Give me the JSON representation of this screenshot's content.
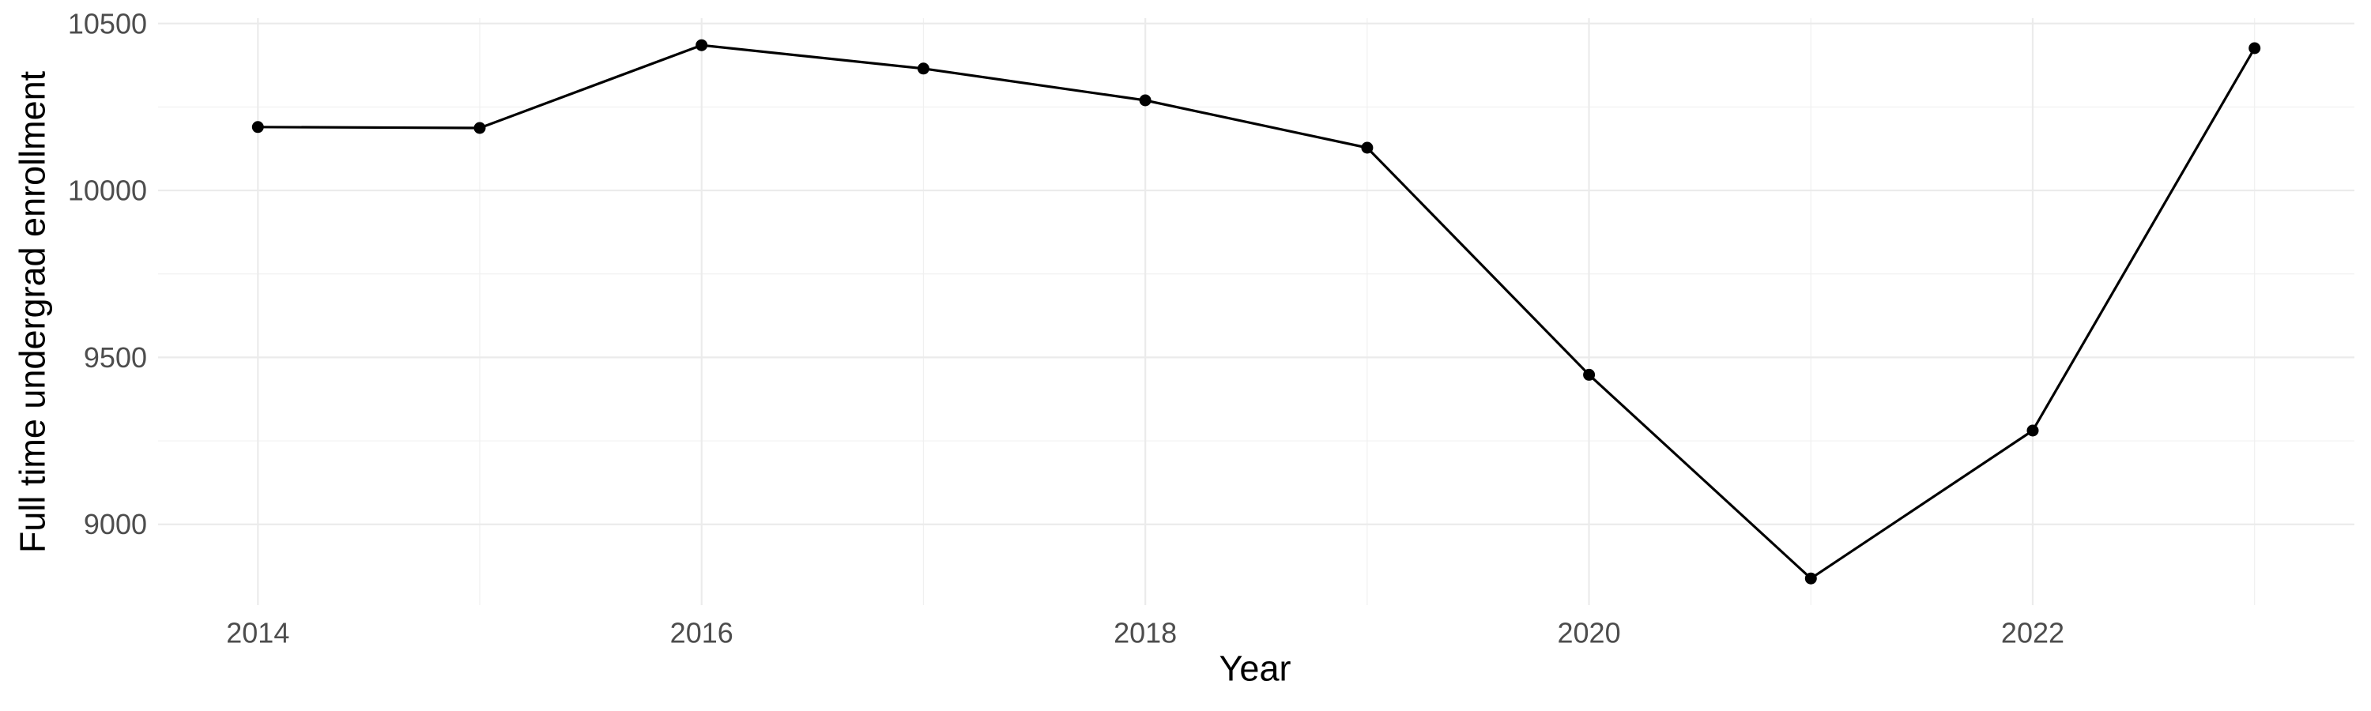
{
  "chart_data": {
    "type": "line",
    "title": "",
    "xlabel": "Year",
    "ylabel": "Full time undergrad enrollment",
    "x": [
      2014,
      2015,
      2016,
      2017,
      2018,
      2019,
      2020,
      2021,
      2022,
      2023
    ],
    "values": [
      10190,
      10187,
      10435,
      10365,
      10270,
      10128,
      9448,
      8838,
      9281,
      10426
    ],
    "x_ticks": [
      {
        "value": 2014,
        "label": "2014"
      },
      {
        "value": 2016,
        "label": "2016"
      },
      {
        "value": 2018,
        "label": "2018"
      },
      {
        "value": 2020,
        "label": "2020"
      },
      {
        "value": 2022,
        "label": "2022"
      }
    ],
    "y_ticks": [
      {
        "value": 9000,
        "label": "9000"
      },
      {
        "value": 9500,
        "label": "9500"
      },
      {
        "value": 10000,
        "label": "10000"
      },
      {
        "value": 10500,
        "label": "10500"
      }
    ],
    "x_minor_ticks": [
      2015,
      2017,
      2019,
      2021,
      2023
    ],
    "y_minor_ticks": [
      9250,
      9750,
      10250
    ],
    "xlim": [
      2013.55,
      2023.45
    ],
    "ylim": [
      8758,
      10516
    ],
    "grid": "major-and-minor",
    "legend": "none",
    "style": {
      "line_color": "#000000",
      "point_color": "#000000",
      "grid_major_color": "#EBEBEB",
      "grid_minor_color": "#F0F0F0",
      "tick_label_color": "#4D4D4D",
      "axis_title_color": "#000000",
      "background": "#FFFFFF"
    }
  }
}
